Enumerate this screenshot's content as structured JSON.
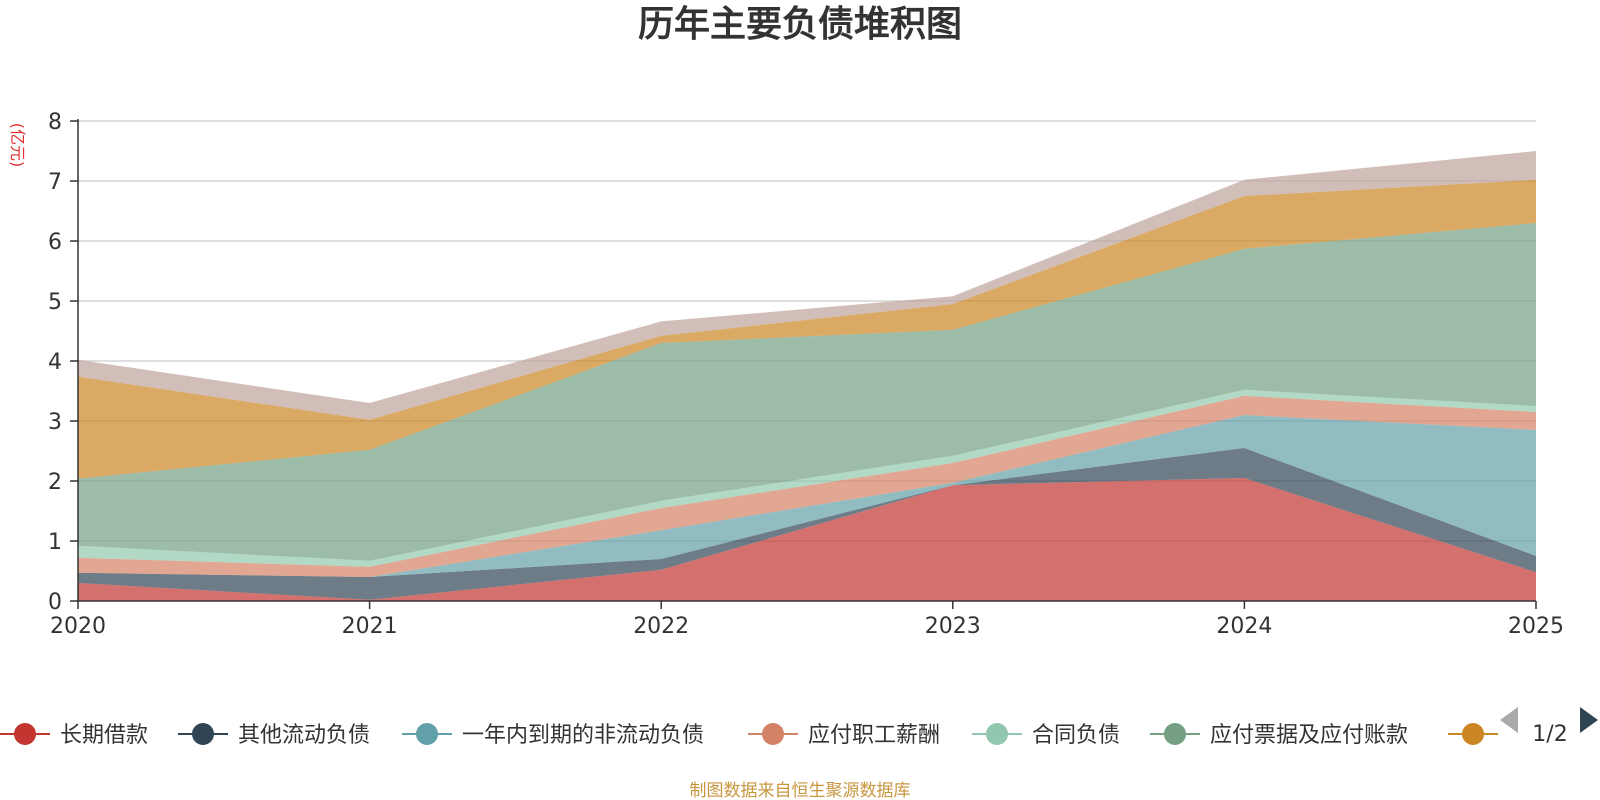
{
  "chart_data": {
    "type": "area",
    "stacked": true,
    "title": "历年主要负债堆积图",
    "ylabel": "(亿元)",
    "categories": [
      "2020",
      "2021",
      "2022",
      "2023",
      "2024",
      "2025"
    ],
    "ylim": [
      0,
      8
    ],
    "yticks": [
      0,
      1,
      2,
      3,
      4,
      5,
      6,
      7,
      8
    ],
    "series": [
      {
        "name": "长期借款",
        "color": "#c23531",
        "values": [
          0.3,
          0.02,
          0.52,
          1.93,
          2.05,
          0.48
        ]
      },
      {
        "name": "其他流动负债",
        "color": "#2f4554",
        "values": [
          0.17,
          0.38,
          0.18,
          0.0,
          0.5,
          0.27
        ]
      },
      {
        "name": "一年内到期的非流动负债",
        "color": "#61a0a8",
        "values": [
          0.0,
          0.0,
          0.48,
          0.04,
          0.55,
          2.1
        ]
      },
      {
        "name": "应付职工薪酬",
        "color": "#d48265",
        "values": [
          0.25,
          0.17,
          0.37,
          0.33,
          0.32,
          0.3
        ]
      },
      {
        "name": "合同负债",
        "color": "#91c7ae",
        "values": [
          0.2,
          0.1,
          0.12,
          0.12,
          0.1,
          0.1
        ]
      },
      {
        "name": "应付票据及应付账款",
        "color": "#749f83",
        "values": [
          1.12,
          1.85,
          2.63,
          2.1,
          2.35,
          3.05
        ]
      },
      {
        "name": "",
        "color": "#ca8622",
        "values": [
          1.7,
          0.5,
          0.12,
          0.43,
          0.88,
          0.72
        ]
      },
      {
        "name": "",
        "color": "#bda29a",
        "values": [
          0.28,
          0.28,
          0.24,
          0.13,
          0.27,
          0.48
        ]
      }
    ],
    "legend": {
      "position": "bottom",
      "visible_items": [
        "长期借款",
        "其他流动负债",
        "一年内到期的非流动负债",
        "应付职工薪酬",
        "合同负债",
        "应付票据及应付账款",
        ""
      ],
      "page_label": "1/2"
    }
  },
  "footer": {
    "source": "制图数据来自恒生聚源数据库",
    "color": "#c8963e"
  },
  "unit_color": "#e03030"
}
